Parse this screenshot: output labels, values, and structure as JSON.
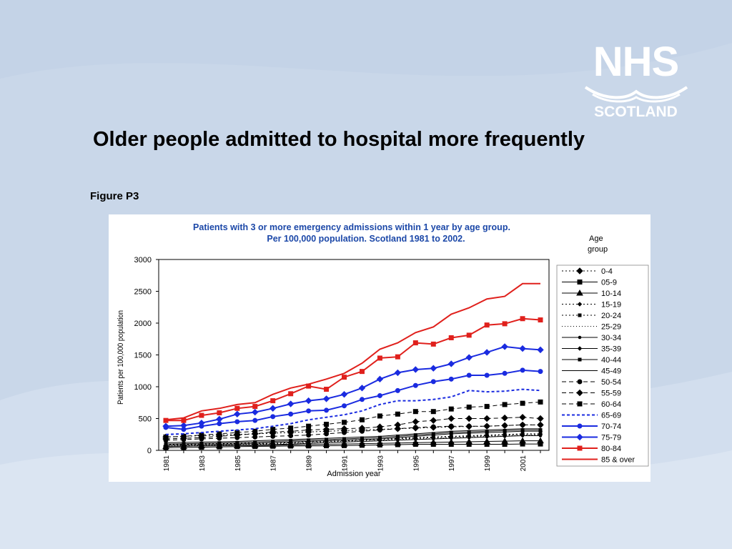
{
  "slide": {
    "title": "Older people admitted to hospital more frequently",
    "figure_label": "Figure P3"
  },
  "logo": {
    "line1": "NHS",
    "line2": "SCOTLAND"
  },
  "colors": {
    "background": "#c9d7e9",
    "title_blue": "#1c48a8",
    "red": "#e0201c",
    "blue": "#1a2be0"
  },
  "chart_data": {
    "type": "line",
    "title_line1": "Patients with 3 or more emergency admissions  within 1 year by age group.",
    "title_line2": "Per 100,000 population.   Scotland 1981 to 2002.",
    "xlabel": "Admission year",
    "ylabel": "Patients per 100,000 population",
    "legend_title_1": "Age",
    "legend_title_2": "group",
    "legend_position": "right",
    "ylim": [
      0,
      3000
    ],
    "yticks": [
      "0",
      "500",
      "1000",
      "1500",
      "2000",
      "2500",
      "3000"
    ],
    "x": [
      1981,
      1982,
      1983,
      1984,
      1985,
      1986,
      1987,
      1988,
      1989,
      1990,
      1991,
      1992,
      1993,
      1994,
      1995,
      1996,
      1997,
      1998,
      1999,
      2000,
      2001,
      2002
    ],
    "xtick_labels": [
      "1981",
      "1983",
      "1985",
      "1987",
      "1989",
      "1991",
      "1993",
      "1995",
      "1997",
      "1999",
      "2001"
    ],
    "series": [
      {
        "name": "0-4",
        "color": "#000000",
        "dash": "2,3",
        "marker": "diamond",
        "values": [
          210,
          220,
          230,
          240,
          250,
          260,
          270,
          280,
          290,
          300,
          310,
          320,
          330,
          340,
          350,
          360,
          370,
          375,
          380,
          390,
          400,
          400
        ]
      },
      {
        "name": "05-9",
        "color": "#000000",
        "dash": "",
        "marker": "square",
        "values": [
          40,
          45,
          50,
          55,
          60,
          62,
          65,
          68,
          70,
          72,
          75,
          80,
          85,
          90,
          95,
          95,
          95,
          95,
          95,
          95,
          100,
          100
        ]
      },
      {
        "name": "10-14",
        "color": "#000000",
        "dash": "",
        "marker": "triangle",
        "values": [
          60,
          65,
          70,
          72,
          75,
          78,
          80,
          85,
          90,
          95,
          100,
          105,
          110,
          115,
          120,
          125,
          130,
          135,
          140,
          145,
          150,
          150
        ]
      },
      {
        "name": "15-19",
        "color": "#000000",
        "dash": "2,3",
        "marker": "diamond-small",
        "values": [
          80,
          85,
          90,
          95,
          100,
          105,
          110,
          120,
          130,
          140,
          150,
          160,
          170,
          180,
          190,
          200,
          210,
          220,
          230,
          240,
          250,
          250
        ]
      },
      {
        "name": "20-24",
        "color": "#000000",
        "dash": "2,3",
        "marker": "square-small",
        "values": [
          90,
          95,
          100,
          105,
          110,
          115,
          120,
          130,
          140,
          150,
          160,
          170,
          180,
          190,
          200,
          210,
          220,
          230,
          240,
          250,
          260,
          260
        ]
      },
      {
        "name": "25-29",
        "color": "#000000",
        "dash": "1,3",
        "marker": "none",
        "values": [
          70,
          75,
          80,
          85,
          90,
          95,
          100,
          110,
          120,
          130,
          140,
          150,
          160,
          170,
          180,
          190,
          200,
          210,
          220,
          230,
          240,
          240
        ]
      },
      {
        "name": "30-34",
        "color": "#000000",
        "dash": "",
        "marker": "dot",
        "values": [
          60,
          65,
          70,
          75,
          80,
          85,
          90,
          100,
          110,
          120,
          130,
          140,
          150,
          160,
          170,
          180,
          190,
          200,
          210,
          220,
          230,
          230
        ]
      },
      {
        "name": "35-39",
        "color": "#000000",
        "dash": "",
        "marker": "diamond-small",
        "values": [
          80,
          85,
          90,
          95,
          100,
          110,
          120,
          130,
          140,
          150,
          160,
          170,
          180,
          200,
          220,
          240,
          260,
          270,
          280,
          290,
          300,
          300
        ]
      },
      {
        "name": "40-44",
        "color": "#000000",
        "dash": "",
        "marker": "square-small",
        "values": [
          100,
          105,
          110,
          115,
          120,
          130,
          140,
          150,
          160,
          170,
          180,
          190,
          200,
          220,
          240,
          260,
          280,
          290,
          300,
          310,
          320,
          320
        ]
      },
      {
        "name": "45-49",
        "color": "#000000",
        "dash": "",
        "marker": "none",
        "values": [
          120,
          125,
          130,
          135,
          140,
          150,
          160,
          170,
          180,
          190,
          200,
          210,
          220,
          240,
          260,
          280,
          300,
          310,
          320,
          330,
          340,
          340
        ]
      },
      {
        "name": "50-54",
        "color": "#000000",
        "dash": "6,4",
        "marker": "circle",
        "values": [
          160,
          170,
          180,
          190,
          200,
          210,
          220,
          230,
          240,
          260,
          280,
          300,
          320,
          340,
          360,
          370,
          380,
          380,
          380,
          390,
          400,
          400
        ]
      },
      {
        "name": "55-59",
        "color": "#000000",
        "dash": "6,4",
        "marker": "diamond",
        "values": [
          180,
          190,
          200,
          220,
          240,
          260,
          290,
          300,
          320,
          330,
          340,
          350,
          370,
          400,
          450,
          470,
          500,
          500,
          500,
          510,
          520,
          500
        ]
      },
      {
        "name": "60-64",
        "color": "#000000",
        "dash": "6,4",
        "marker": "square",
        "values": [
          210,
          220,
          240,
          260,
          280,
          300,
          330,
          350,
          380,
          410,
          440,
          480,
          540,
          570,
          610,
          610,
          650,
          680,
          690,
          720,
          740,
          760
        ]
      },
      {
        "name": "65-69",
        "color": "#1a2be0",
        "dash": "4,3",
        "marker": "none",
        "values": [
          250,
          260,
          280,
          300,
          320,
          340,
          380,
          420,
          480,
          520,
          560,
          620,
          720,
          780,
          780,
          800,
          840,
          940,
          920,
          930,
          960,
          940
        ]
      },
      {
        "name": "70-74",
        "color": "#1a2be0",
        "dash": "",
        "marker": "circle",
        "values": [
          360,
          330,
          380,
          420,
          450,
          470,
          530,
          570,
          620,
          630,
          700,
          800,
          860,
          940,
          1020,
          1080,
          1120,
          1180,
          1180,
          1210,
          1260,
          1240
        ]
      },
      {
        "name": "75-79",
        "color": "#1a2be0",
        "dash": "",
        "marker": "diamond",
        "values": [
          380,
          390,
          430,
          490,
          570,
          600,
          660,
          730,
          780,
          810,
          880,
          980,
          1120,
          1220,
          1270,
          1290,
          1360,
          1460,
          1540,
          1630,
          1600,
          1580
        ]
      },
      {
        "name": "80-84",
        "color": "#e0201c",
        "dash": "",
        "marker": "square",
        "values": [
          470,
          470,
          550,
          590,
          660,
          690,
          780,
          890,
          1010,
          960,
          1150,
          1240,
          1450,
          1470,
          1690,
          1670,
          1770,
          1810,
          1970,
          1990,
          2070,
          2050
        ]
      },
      {
        "name": "85 & over",
        "color": "#e0201c",
        "dash": "",
        "marker": "none",
        "values": [
          480,
          510,
          620,
          660,
          720,
          750,
          880,
          980,
          1040,
          1120,
          1210,
          1370,
          1590,
          1690,
          1850,
          1940,
          2140,
          2240,
          2380,
          2420,
          2620,
          2620
        ]
      }
    ]
  }
}
